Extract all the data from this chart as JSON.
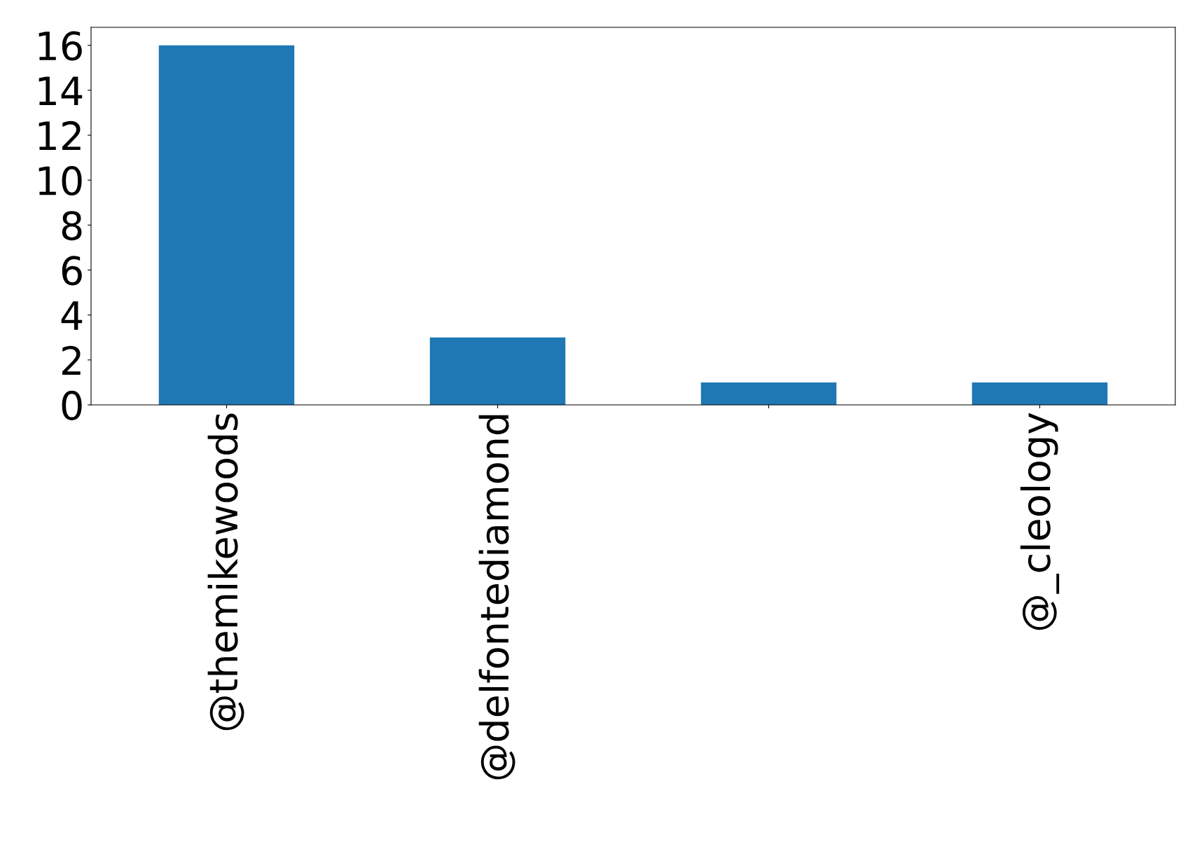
{
  "chart_data": {
    "type": "bar",
    "categories": [
      "@themikewoods",
      "@delfontediamond",
      null,
      "@_cleology"
    ],
    "values": [
      16,
      3,
      1,
      1
    ],
    "color": "#1f77b4",
    "ylim": [
      0,
      16.8
    ],
    "yticks": [
      0,
      2,
      4,
      6,
      8,
      10,
      12,
      14,
      16
    ],
    "grid": false,
    "legend": false
  }
}
